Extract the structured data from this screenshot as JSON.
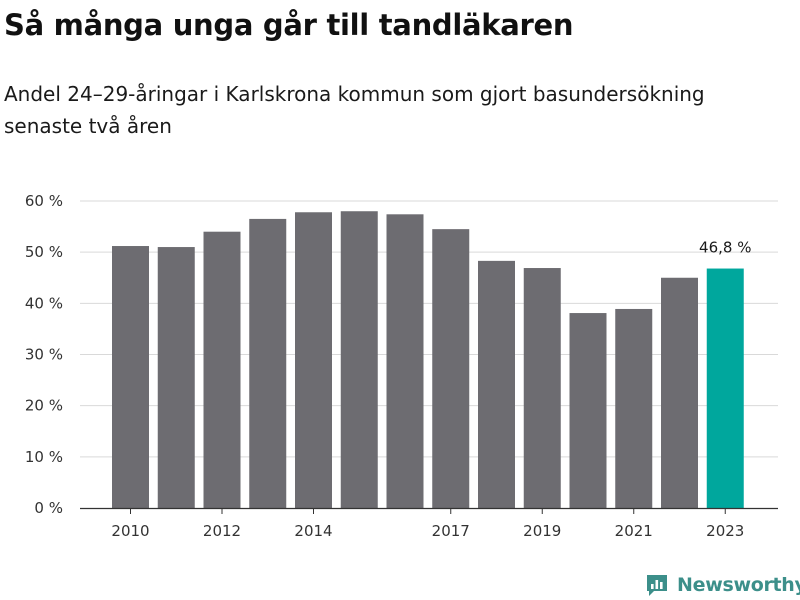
{
  "header": {
    "title": "Så många unga går till tandläkaren",
    "subtitle": "Andel 24–29-åringar i Karlskrona kommun som gjort basundersökning senaste två åren"
  },
  "chart_data": {
    "type": "bar",
    "categories": [
      "2010",
      "2011",
      "2012",
      "2013",
      "2014",
      "2015",
      "2016",
      "2017",
      "2018",
      "2019",
      "2020",
      "2021",
      "2022",
      "2023"
    ],
    "x_tick_labels": [
      "2010",
      "2012",
      "2014",
      "2017",
      "2019",
      "2021",
      "2023"
    ],
    "values": [
      51.2,
      51.0,
      54.0,
      56.5,
      57.8,
      58.0,
      57.4,
      54.5,
      48.3,
      46.9,
      38.1,
      38.9,
      45.0,
      46.8
    ],
    "ylim": [
      0,
      60
    ],
    "y_ticks": [
      0,
      10,
      20,
      30,
      40,
      50,
      60
    ],
    "y_tick_labels": [
      "0 %",
      "10 %",
      "20 %",
      "30 %",
      "40 %",
      "50 %",
      "60 %"
    ],
    "highlight_index": 13,
    "highlight_label": "46,8 %",
    "grid": true,
    "colors": {
      "bar": "#6d6c71",
      "highlight": "#00a79d",
      "grid": "#d9d9d9",
      "axis": "#333333"
    }
  },
  "brand": {
    "name": "Newsworthy",
    "icon": "newsworthy-logo-icon",
    "color": "#3c8f8a"
  }
}
